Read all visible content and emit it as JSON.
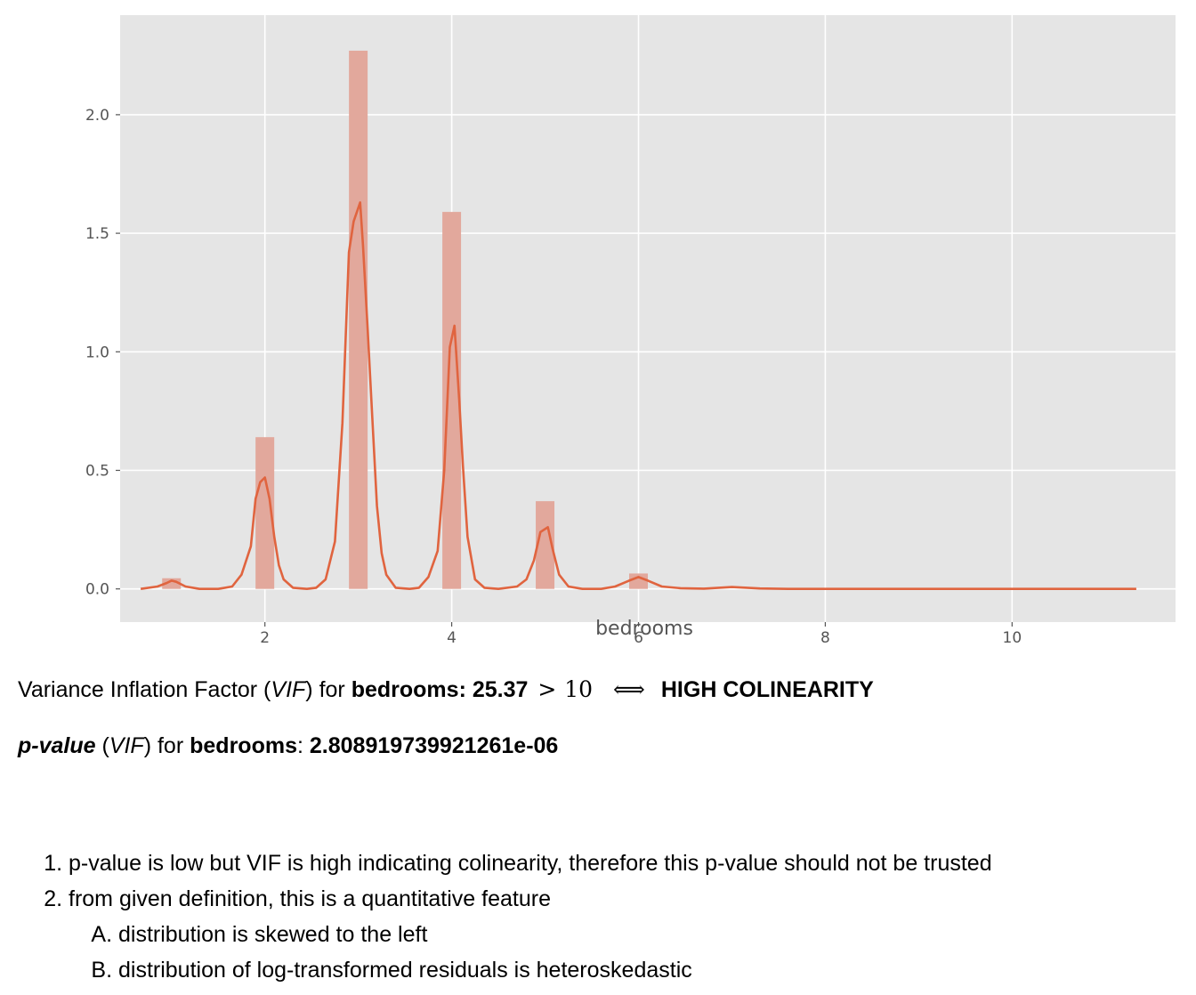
{
  "chart_data": {
    "type": "bar",
    "xlabel": "bedrooms",
    "xlim": [
      0.45,
      11.75
    ],
    "ylim": [
      -0.14,
      2.42
    ],
    "x_ticks": [
      2,
      4,
      6,
      8,
      10
    ],
    "y_ticks": [
      0.0,
      0.5,
      1.0,
      1.5,
      2.0
    ],
    "y_tick_labels": [
      "0.0",
      "0.5",
      "1.0",
      "1.5",
      "2.0"
    ],
    "grid": true,
    "colors": {
      "background": "#e5e5e5",
      "bar": "#e2a89c",
      "line": "#e0643f",
      "grid": "#ffffff",
      "tick": "#555555"
    },
    "histogram": [
      {
        "x": 1,
        "value": 0.045
      },
      {
        "x": 2,
        "value": 0.64
      },
      {
        "x": 3,
        "value": 2.27
      },
      {
        "x": 4,
        "value": 1.59
      },
      {
        "x": 5,
        "value": 0.37
      },
      {
        "x": 6,
        "value": 0.065
      }
    ],
    "bar_width": 0.2,
    "kde": {
      "x": [
        0.67,
        0.85,
        0.95,
        1.0,
        1.05,
        1.15,
        1.3,
        1.5,
        1.65,
        1.75,
        1.85,
        1.9,
        1.95,
        2.0,
        2.05,
        2.1,
        2.15,
        2.2,
        2.3,
        2.45,
        2.55,
        2.65,
        2.75,
        2.83,
        2.9,
        2.95,
        3.02,
        3.05,
        3.1,
        3.15,
        3.2,
        3.25,
        3.3,
        3.4,
        3.55,
        3.65,
        3.75,
        3.85,
        3.92,
        3.98,
        4.03,
        4.08,
        4.12,
        4.17,
        4.25,
        4.35,
        4.5,
        4.7,
        4.8,
        4.88,
        4.95,
        5.03,
        5.08,
        5.15,
        5.25,
        5.4,
        5.6,
        5.75,
        5.9,
        6.0,
        6.1,
        6.25,
        6.45,
        6.7,
        7.0,
        7.3,
        7.6,
        8.0,
        9.0,
        10.0,
        11.33
      ],
      "y": [
        0.0,
        0.01,
        0.025,
        0.035,
        0.03,
        0.01,
        0.0,
        0.0,
        0.01,
        0.06,
        0.18,
        0.38,
        0.45,
        0.47,
        0.38,
        0.22,
        0.1,
        0.04,
        0.005,
        0.0,
        0.005,
        0.04,
        0.2,
        0.7,
        1.42,
        1.55,
        1.63,
        1.45,
        1.1,
        0.72,
        0.35,
        0.15,
        0.06,
        0.005,
        0.0,
        0.005,
        0.05,
        0.16,
        0.5,
        1.02,
        1.11,
        0.8,
        0.52,
        0.22,
        0.04,
        0.005,
        0.0,
        0.01,
        0.04,
        0.12,
        0.24,
        0.26,
        0.17,
        0.06,
        0.01,
        0.0,
        0.0,
        0.01,
        0.035,
        0.05,
        0.035,
        0.01,
        0.003,
        0.001,
        0.008,
        0.002,
        0.0,
        0.0,
        0.0,
        0.0,
        0.0
      ]
    }
  },
  "vif_line": {
    "prefix": "Variance Inflation Factor (",
    "vif_abbr": "VIF",
    "mid": ") for ",
    "feature": "bedrooms",
    "colon_value": ": 25.37",
    "gt": ">",
    "threshold": "10",
    "iff": "⟺",
    "verdict": "HIGH COLINEARITY"
  },
  "pvalue_line": {
    "label": "p-value",
    "open": " (",
    "vif_abbr": "VIF",
    "mid": ") for ",
    "feature": "bedrooms",
    "colon": ": ",
    "value": "2.808919739921261e-06"
  },
  "notes": {
    "items": [
      "p-value is low but VIF is high indicating colinearity, therefore this p-value should not be trusted",
      "from given definition, this is a quantitative feature"
    ],
    "sub_items": [
      "distribution is skewed to the left",
      "distribution of log-transformed residuals is heteroskedastic"
    ]
  }
}
